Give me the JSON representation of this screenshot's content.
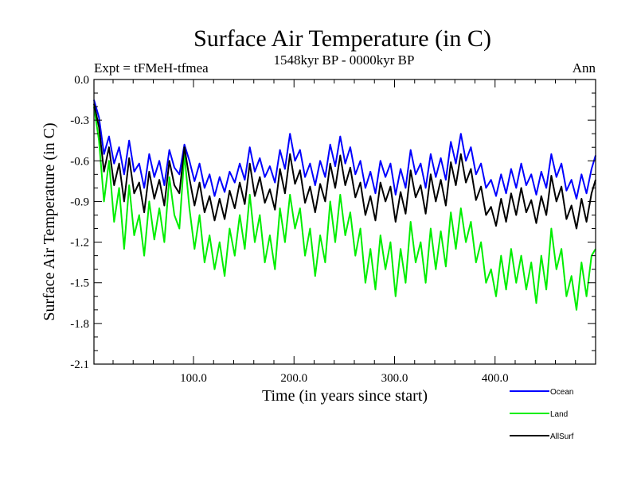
{
  "chart_data": {
    "type": "line",
    "title": "Surface Air Temperature (in C)",
    "subtitle": "1548kyr BP - 0000kyr BP",
    "left_label": "Expt = tFMeH-tfmea",
    "right_label": "Ann",
    "xlabel": "Time (in years since start)",
    "ylabel": "Surface Air Temperature (in C)",
    "xlim": [
      1,
      500
    ],
    "ylim": [
      -2.1,
      0.0
    ],
    "x_ticks": [
      100,
      200,
      300,
      400
    ],
    "x_tick_labels": [
      "100.0",
      "200.0",
      "300.0",
      "400.0"
    ],
    "y_ticks": [
      0.0,
      -0.3,
      -0.6,
      -0.9,
      -1.2,
      -1.5,
      -1.8,
      -2.1
    ],
    "y_tick_labels": [
      "0.0",
      "-0.3",
      "-0.6",
      "-0.9",
      "-1.2",
      "-1.5",
      "-1.8",
      "-2.1"
    ],
    "grid": false,
    "legend_position": "bottom-right, below plot",
    "x": [
      1,
      6,
      11,
      16,
      21,
      26,
      31,
      36,
      41,
      46,
      51,
      56,
      61,
      66,
      71,
      76,
      81,
      86,
      91,
      96,
      101,
      106,
      111,
      116,
      121,
      126,
      131,
      136,
      141,
      146,
      151,
      156,
      161,
      166,
      171,
      176,
      181,
      186,
      191,
      196,
      201,
      206,
      211,
      216,
      221,
      226,
      231,
      236,
      241,
      246,
      251,
      256,
      261,
      266,
      271,
      276,
      281,
      286,
      291,
      296,
      301,
      306,
      311,
      316,
      321,
      326,
      331,
      336,
      341,
      346,
      351,
      356,
      361,
      366,
      371,
      376,
      381,
      386,
      391,
      396,
      401,
      406,
      411,
      416,
      421,
      426,
      431,
      436,
      441,
      446,
      451,
      456,
      461,
      466,
      471,
      476,
      481,
      486,
      491,
      496,
      500
    ],
    "series": [
      {
        "name": "Ocean",
        "color": "#0000ff",
        "values": [
          -0.15,
          -0.28,
          -0.55,
          -0.42,
          -0.62,
          -0.5,
          -0.7,
          -0.45,
          -0.68,
          -0.62,
          -0.8,
          -0.55,
          -0.72,
          -0.6,
          -0.78,
          -0.52,
          -0.65,
          -0.7,
          -0.48,
          -0.6,
          -0.75,
          -0.62,
          -0.8,
          -0.7,
          -0.86,
          -0.72,
          -0.83,
          -0.68,
          -0.76,
          -0.62,
          -0.74,
          -0.5,
          -0.68,
          -0.58,
          -0.72,
          -0.64,
          -0.76,
          -0.52,
          -0.66,
          -0.4,
          -0.6,
          -0.52,
          -0.72,
          -0.62,
          -0.78,
          -0.6,
          -0.72,
          -0.48,
          -0.64,
          -0.42,
          -0.62,
          -0.5,
          -0.7,
          -0.6,
          -0.8,
          -0.68,
          -0.84,
          -0.6,
          -0.72,
          -0.62,
          -0.85,
          -0.66,
          -0.8,
          -0.52,
          -0.7,
          -0.62,
          -0.8,
          -0.55,
          -0.72,
          -0.58,
          -0.74,
          -0.46,
          -0.62,
          -0.4,
          -0.6,
          -0.5,
          -0.7,
          -0.62,
          -0.8,
          -0.74,
          -0.86,
          -0.7,
          -0.84,
          -0.66,
          -0.8,
          -0.62,
          -0.78,
          -0.7,
          -0.85,
          -0.68,
          -0.8,
          -0.55,
          -0.72,
          -0.62,
          -0.82,
          -0.74,
          -0.88,
          -0.7,
          -0.84,
          -0.66,
          -0.56
        ]
      },
      {
        "name": "Land",
        "color": "#00ee00",
        "values": [
          -0.2,
          -0.45,
          -0.9,
          -0.6,
          -1.05,
          -0.8,
          -1.25,
          -0.78,
          -1.15,
          -1.0,
          -1.3,
          -0.9,
          -1.18,
          -0.95,
          -1.2,
          -0.72,
          -1.0,
          -1.1,
          -0.55,
          -0.95,
          -1.25,
          -1.0,
          -1.35,
          -1.15,
          -1.4,
          -1.2,
          -1.45,
          -1.1,
          -1.3,
          -1.0,
          -1.25,
          -0.85,
          -1.2,
          -1.0,
          -1.35,
          -1.15,
          -1.4,
          -0.95,
          -1.2,
          -0.85,
          -1.1,
          -0.95,
          -1.3,
          -1.1,
          -1.45,
          -1.15,
          -1.35,
          -0.9,
          -1.2,
          -0.85,
          -1.15,
          -0.98,
          -1.3,
          -1.1,
          -1.5,
          -1.25,
          -1.55,
          -1.15,
          -1.4,
          -1.2,
          -1.6,
          -1.25,
          -1.5,
          -1.05,
          -1.35,
          -1.2,
          -1.5,
          -1.1,
          -1.4,
          -1.12,
          -1.38,
          -0.98,
          -1.25,
          -0.95,
          -1.2,
          -1.05,
          -1.35,
          -1.2,
          -1.5,
          -1.4,
          -1.6,
          -1.3,
          -1.55,
          -1.25,
          -1.5,
          -1.3,
          -1.55,
          -1.35,
          -1.65,
          -1.3,
          -1.55,
          -1.1,
          -1.4,
          -1.25,
          -1.6,
          -1.45,
          -1.7,
          -1.35,
          -1.6,
          -1.3,
          -1.25
        ]
      },
      {
        "name": "AllSurf",
        "color": "#000000",
        "values": [
          -0.18,
          -0.35,
          -0.68,
          -0.5,
          -0.78,
          -0.62,
          -0.9,
          -0.58,
          -0.84,
          -0.76,
          -0.98,
          -0.68,
          -0.88,
          -0.74,
          -0.93,
          -0.6,
          -0.78,
          -0.84,
          -0.5,
          -0.73,
          -0.93,
          -0.76,
          -0.98,
          -0.86,
          -1.04,
          -0.88,
          -1.03,
          -0.82,
          -0.95,
          -0.76,
          -0.92,
          -0.62,
          -0.86,
          -0.72,
          -0.91,
          -0.81,
          -0.96,
          -0.66,
          -0.84,
          -0.55,
          -0.77,
          -0.67,
          -0.91,
          -0.79,
          -0.98,
          -0.77,
          -0.9,
          -0.62,
          -0.8,
          -0.56,
          -0.78,
          -0.65,
          -0.87,
          -0.76,
          -1.0,
          -0.86,
          -1.04,
          -0.76,
          -0.9,
          -0.79,
          -1.05,
          -0.83,
          -0.99,
          -0.67,
          -0.87,
          -0.78,
          -0.99,
          -0.7,
          -0.9,
          -0.74,
          -0.93,
          -0.61,
          -0.78,
          -0.55,
          -0.76,
          -0.66,
          -0.89,
          -0.79,
          -1.0,
          -0.94,
          -1.08,
          -0.88,
          -1.05,
          -0.84,
          -1.0,
          -0.8,
          -0.98,
          -0.89,
          -1.06,
          -0.86,
          -1.0,
          -0.71,
          -0.9,
          -0.79,
          -1.03,
          -0.93,
          -1.1,
          -0.88,
          -1.05,
          -0.84,
          -0.74
        ]
      }
    ]
  }
}
